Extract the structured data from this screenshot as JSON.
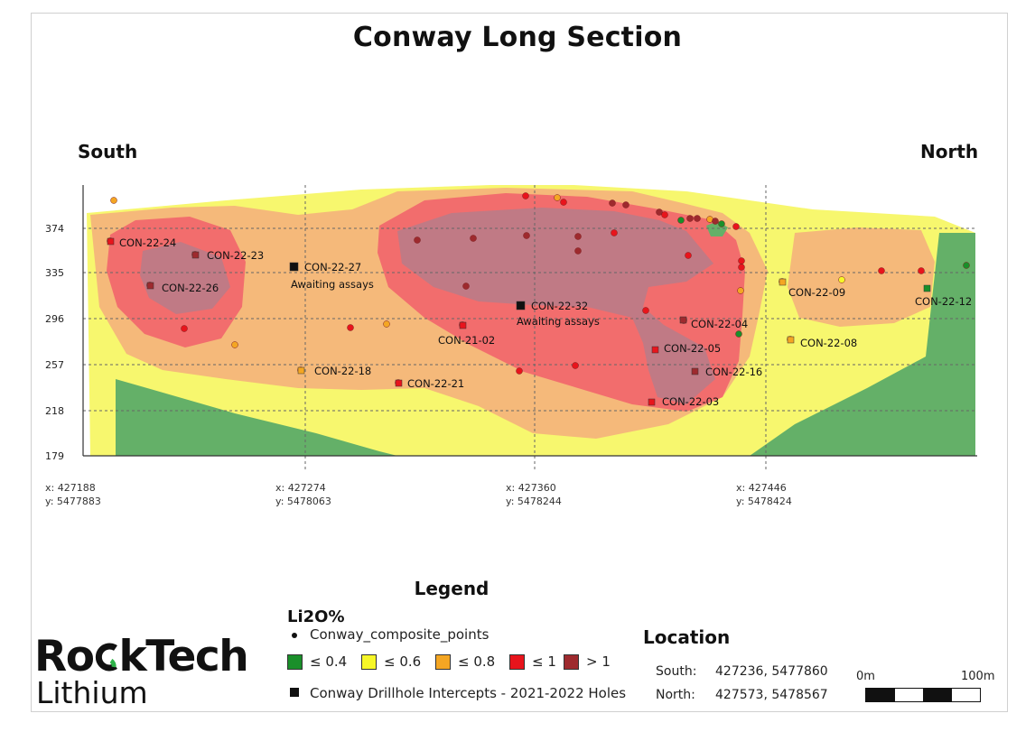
{
  "title": "Conway Long Section",
  "directions": {
    "left": "South",
    "right": "North"
  },
  "y_axis_ticks": [
    "374",
    "335",
    "296",
    "257",
    "218",
    "179"
  ],
  "x_axis_ticks": [
    {
      "x": "x: 427188",
      "y": "y: 5477883"
    },
    {
      "x": "x: 427274",
      "y": "y: 5478063"
    },
    {
      "x": "x: 427360",
      "y": "y: 5478244"
    },
    {
      "x": "x: 427446",
      "y": "y: 5478424"
    }
  ],
  "drillhole_labels": [
    "CON-22-24",
    "CON-22-23",
    "CON-22-26",
    "CON-22-27",
    "CON-22-18",
    "CON-22-21",
    "CON-21-02",
    "CON-22-32",
    "CON-22-05",
    "CON-22-04",
    "CON-22-16",
    "CON-22-03",
    "CON-22-09",
    "CON-22-08",
    "CON-22-12"
  ],
  "awaiting_label": "Awaiting assays",
  "legend": {
    "title": "Legend",
    "li2o_title": "Li2O%",
    "points_label": "Conway_composite_points",
    "classes": [
      {
        "label": "≤ 0.4",
        "color": "#1a8f2a"
      },
      {
        "label": "≤ 0.6",
        "color": "#f7f728"
      },
      {
        "label": "≤ 0.8",
        "color": "#f4a623"
      },
      {
        "label": "≤ 1",
        "color": "#e8141c"
      },
      {
        "label": "> 1",
        "color": "#9e2a2e"
      }
    ],
    "intercepts_label": "Conway Drillhole Intercepts - 2021-2022 Holes"
  },
  "location": {
    "title": "Location",
    "south_label": "South:",
    "south_value": "427236, 5477860",
    "north_label": "North:",
    "north_value": "427573, 5478567"
  },
  "scale": {
    "left": "0m",
    "right": "100m"
  },
  "logo": {
    "line1_a": "Ro",
    "line1_b": "kTech",
    "line2": "Lithium"
  }
}
